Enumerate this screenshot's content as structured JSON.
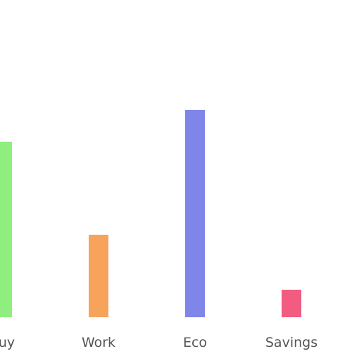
{
  "chart_data": {
    "type": "bar",
    "categories": [
      "Buy",
      "Work",
      "Eco",
      "Savings"
    ],
    "values": [
      83,
      39,
      98,
      13
    ],
    "ylim": [
      0,
      100
    ],
    "grid": false,
    "legend": "none",
    "colors": [
      "#90ee7e",
      "#f7a35c",
      "#8085e9",
      "#f15c80"
    ],
    "title": "",
    "xlabel": "",
    "ylabel": ""
  }
}
